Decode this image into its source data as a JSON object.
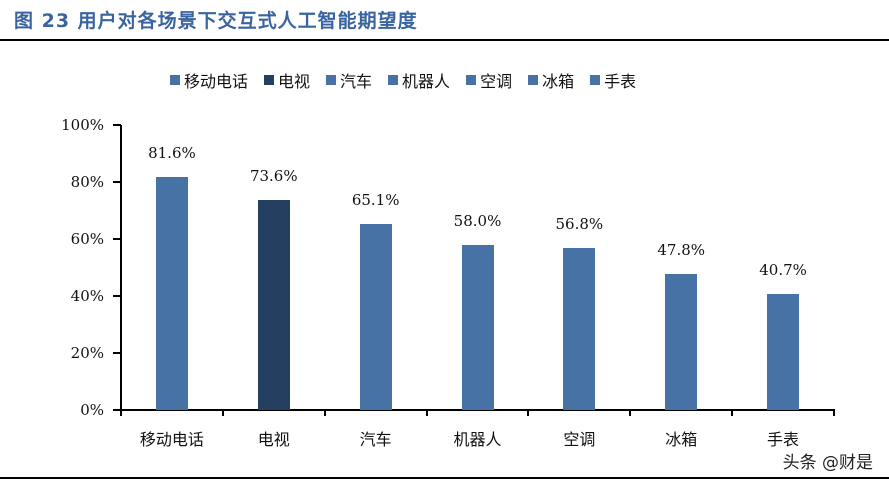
{
  "header": {
    "title": "图 23  用户对各场景下交互式人工智能期望度"
  },
  "watermark": "头条 @财是",
  "colors": {
    "primary_bar": "#4672a6",
    "highlight_bar": "#243f60",
    "title": "#3a64a0"
  },
  "chart_data": {
    "type": "bar",
    "title": "用户对各场景下交互式人工智能期望度",
    "categories": [
      "移动电话",
      "电视",
      "汽车",
      "机器人",
      "空调",
      "冰箱",
      "手表"
    ],
    "values": [
      81.6,
      73.6,
      65.1,
      58.0,
      56.8,
      47.8,
      40.7
    ],
    "value_labels": [
      "81.6%",
      "73.6%",
      "65.1%",
      "58.0%",
      "56.8%",
      "47.8%",
      "40.7%"
    ],
    "bar_colors": [
      "#4672a6",
      "#243f60",
      "#4672a6",
      "#4672a6",
      "#4672a6",
      "#4672a6",
      "#4672a6"
    ],
    "legend": [
      "移动电话",
      "电视",
      "汽车",
      "机器人",
      "空调",
      "冰箱",
      "手表"
    ],
    "legend_position": "top",
    "xlabel": "",
    "ylabel": "",
    "ylim": [
      0,
      100
    ],
    "yticks": [
      "0%",
      "20%",
      "40%",
      "60%",
      "80%",
      "100%"
    ],
    "grid": false
  }
}
